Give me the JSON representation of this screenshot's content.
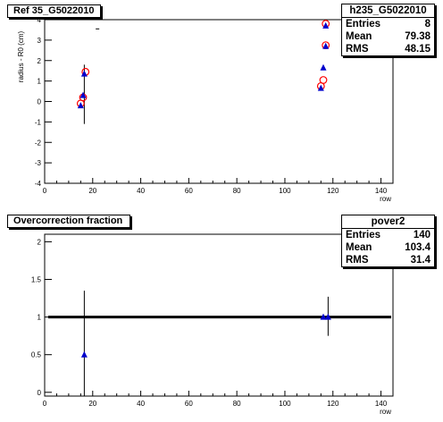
{
  "panel1": {
    "title": "Ref 35_G5022010",
    "stats": {
      "name": "h235_G5022010",
      "rows": [
        {
          "label": "Entries",
          "value": "8"
        },
        {
          "label": "Mean",
          "value": "79.38"
        },
        {
          "label": "RMS",
          "value": "48.15"
        }
      ]
    }
  },
  "panel2": {
    "title": "Overcorrection fraction",
    "stats": {
      "name": "pover2",
      "rows": [
        {
          "label": "Entries",
          "value": "140"
        },
        {
          "label": "Mean",
          "value": "103.4"
        },
        {
          "label": "RMS",
          "value": "31.4"
        }
      ]
    }
  },
  "chart_data": [
    {
      "type": "scatter",
      "title": "Ref 35_G5022010",
      "xlabel": "row",
      "ylabel": "radius - R0 (cm)",
      "xlim": [
        0,
        145
      ],
      "ylim": [
        -4,
        4
      ],
      "xticks": [
        "0",
        "20",
        "40",
        "60",
        "80",
        "100",
        "120",
        "140"
      ],
      "yticks": [
        "-4",
        "-3",
        "-2",
        "-1",
        "0",
        "1",
        "2",
        "3",
        "4"
      ],
      "colors": {
        "circles": "#ff0000",
        "triangles": "#0000cc"
      },
      "series": [
        {
          "marker": "open-circle",
          "points": [
            [
              15,
              -0.1
            ],
            [
              16,
              0.2
            ],
            [
              17,
              1.45
            ],
            [
              115,
              0.75
            ],
            [
              116,
              1.05
            ],
            [
              117,
              2.75
            ],
            [
              117,
              3.8
            ]
          ]
        },
        {
          "marker": "filled-triangle",
          "points": [
            [
              15,
              -0.2
            ],
            [
              16,
              0.3
            ],
            [
              16.5,
              1.35
            ],
            [
              115,
              0.65
            ],
            [
              116,
              1.65
            ],
            [
              117,
              2.7
            ],
            [
              117,
              3.7
            ]
          ]
        }
      ],
      "error_bars": [
        {
          "x": 16.5,
          "low": -1.1,
          "high": 1.8
        }
      ],
      "stray_marks": [
        {
          "x": 22,
          "y": 3.55
        }
      ]
    },
    {
      "type": "scatter",
      "title": "Overcorrection fraction",
      "xlabel": "row",
      "xlim": [
        0,
        145
      ],
      "ylim": [
        -0.05,
        2.1
      ],
      "xticks": [
        "0",
        "20",
        "40",
        "60",
        "80",
        "100",
        "120",
        "140"
      ],
      "yticks": [
        "0",
        "0.5",
        "1",
        "1.5",
        "2"
      ],
      "reference_line": 1.0,
      "colors": {
        "line": "#000000",
        "triangles": "#0000cc"
      },
      "series": [
        {
          "marker": "filled-triangle",
          "points": [
            [
              16.5,
              0.5
            ],
            [
              116,
              1.0
            ],
            [
              118,
              1.0
            ]
          ]
        }
      ],
      "error_bars": [
        {
          "x": 16.5,
          "low": -0.05,
          "high": 1.35
        },
        {
          "x": 118,
          "low": 0.75,
          "high": 1.27
        }
      ]
    }
  ]
}
